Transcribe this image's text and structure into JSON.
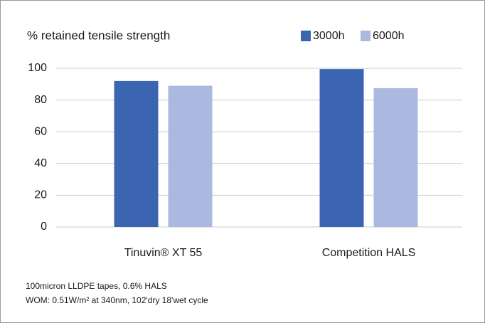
{
  "chart_data": {
    "type": "bar",
    "title": "% retained tensile strength",
    "categories": [
      "Tinuvin® XT 55",
      "Competition HALS"
    ],
    "series": [
      {
        "name": "3000h",
        "color": "#3b65b1",
        "values": [
          92,
          99.5
        ]
      },
      {
        "name": "6000h",
        "color": "#abb8df",
        "values": [
          89,
          87.5
        ]
      }
    ],
    "ylim": [
      0,
      100
    ],
    "yticks": [
      0,
      20,
      40,
      60,
      80,
      100
    ],
    "grid": true,
    "legend": "top-right",
    "notes": [
      "100micron LLDPE tapes, 0.6% HALS",
      "WOM: 0.51W/m² at 340nm, 102'dry 18'wet cycle"
    ]
  }
}
